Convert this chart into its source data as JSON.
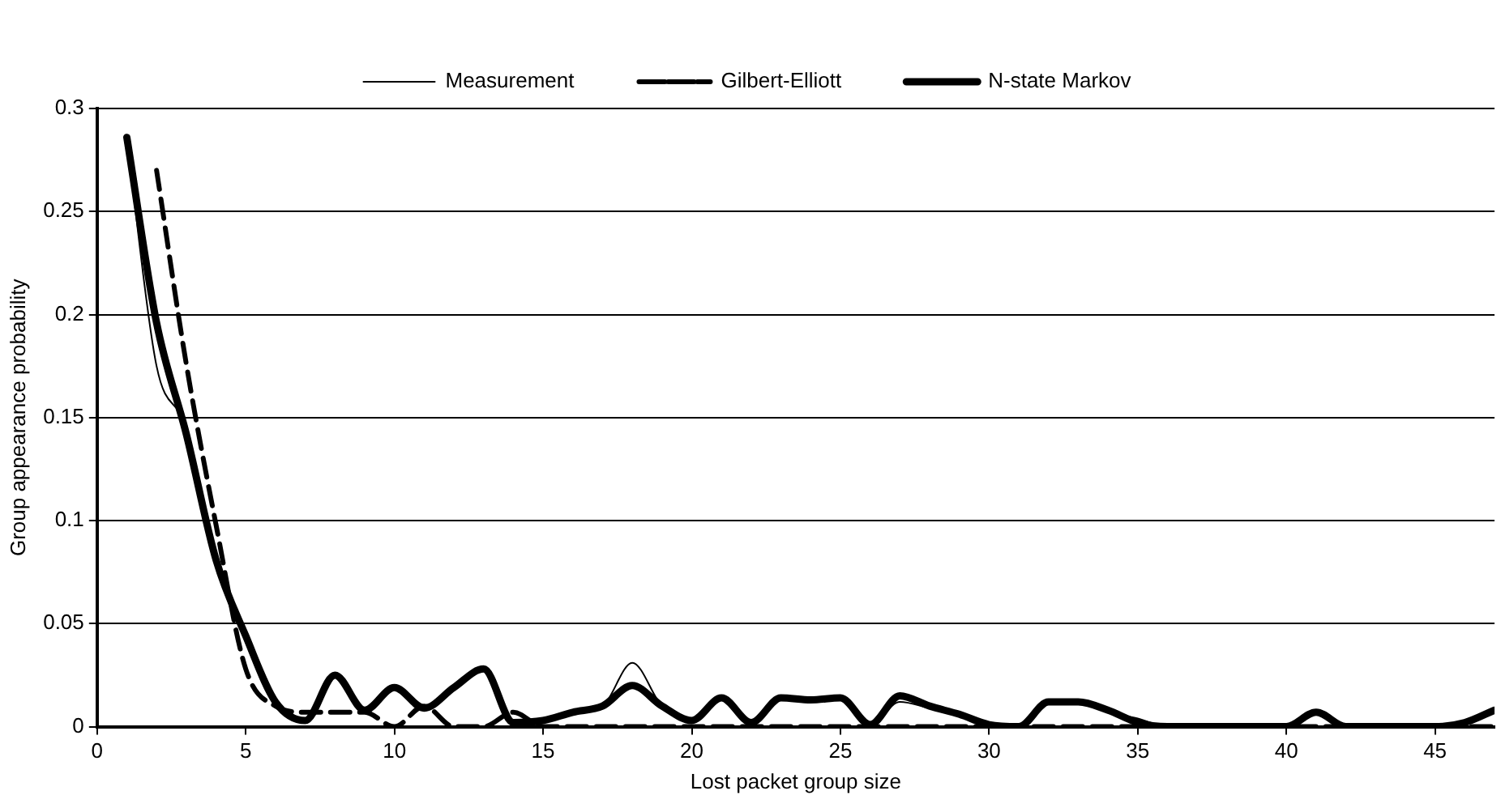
{
  "chart_data": {
    "type": "line",
    "xlabel": "Lost packet group size",
    "ylabel": "Group appearance probability",
    "x": [
      1,
      2,
      3,
      4,
      5,
      6,
      7,
      8,
      9,
      10,
      11,
      12,
      13,
      14,
      15,
      16,
      17,
      18,
      19,
      20,
      21,
      22,
      23,
      24,
      25,
      26,
      27,
      28,
      29,
      30,
      31,
      32,
      33,
      34,
      35,
      36,
      37,
      38,
      39,
      40,
      41,
      42,
      43,
      44,
      45,
      46,
      47
    ],
    "xlim": [
      0,
      47
    ],
    "xticks": [
      0,
      5,
      10,
      15,
      20,
      25,
      30,
      35,
      40,
      45
    ],
    "ylim": [
      0,
      0.3
    ],
    "yticks": [
      0,
      0.05,
      0.1,
      0.15,
      0.2,
      0.25,
      0.3
    ],
    "grid": "y",
    "legend": "top",
    "marker": "none",
    "series": [
      {
        "name": "Measurement",
        "color": "#000000",
        "line_style": "solid",
        "values": [
          0.285,
          0.175,
          0.145,
          0.08,
          0.044,
          0.012,
          0.003,
          0.025,
          0.008,
          0.019,
          0.009,
          0.019,
          0.028,
          0.002,
          0.003,
          0.007,
          0.01,
          0.031,
          0.01,
          0.003,
          0.015,
          0.002,
          0.015,
          0.013,
          0.014,
          0.001,
          0.012,
          0.009,
          0.006,
          0.001,
          0,
          0.012,
          0.012,
          0.007,
          0.004,
          0,
          0,
          0,
          0,
          0,
          0.007,
          0,
          0,
          0,
          0,
          0.002,
          0.008
        ]
      },
      {
        "name": "Gilbert-Elliott",
        "color": "#000000",
        "line_style": "dashed",
        "values": [
          null,
          0.27,
          0.176,
          0.098,
          0.028,
          0.01,
          0.007,
          0.007,
          0.007,
          0,
          0.01,
          0,
          0,
          0.007,
          0,
          0,
          0,
          0,
          0,
          0,
          0,
          0,
          0,
          0,
          0,
          0,
          0,
          0,
          0,
          0,
          0,
          0,
          0,
          0,
          0,
          0,
          0,
          0,
          0,
          0,
          0,
          0,
          0,
          0,
          0,
          0,
          0
        ]
      },
      {
        "name": "N-state Markov",
        "color": "#000000",
        "line_style": "solid",
        "values": [
          0.286,
          0.196,
          0.142,
          0.081,
          0.044,
          0.012,
          0.003,
          0.025,
          0.008,
          0.019,
          0.009,
          0.019,
          0.028,
          0.002,
          0.003,
          0.007,
          0.01,
          0.02,
          0.01,
          0.003,
          0.014,
          0.002,
          0.014,
          0.013,
          0.014,
          0.001,
          0.015,
          0.01,
          0.006,
          0.001,
          0,
          0.012,
          0.012,
          0.008,
          0.002,
          0,
          0,
          0,
          0,
          0,
          0.007,
          0,
          0,
          0,
          0,
          0.002,
          0.008
        ]
      }
    ]
  }
}
